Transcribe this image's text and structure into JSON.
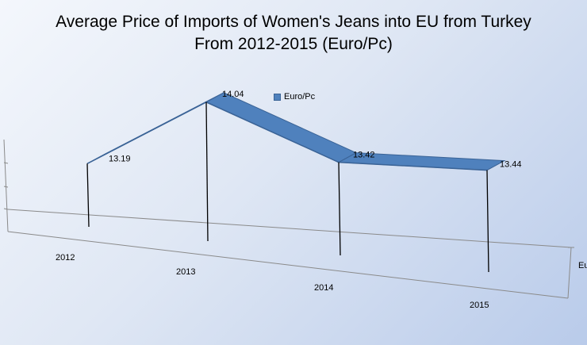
{
  "chart_data": {
    "type": "area",
    "title_lines": [
      "Average Price of Imports of Women's Jeans into EU from Turkey",
      "From 2012-2015  (Euro/Pc)"
    ],
    "categories": [
      "2012",
      "2013",
      "2014",
      "2015"
    ],
    "series": [
      {
        "name": "Euro/Pc",
        "values": [
          13.19,
          14.04,
          13.42,
          13.44
        ]
      }
    ],
    "data_labels": [
      "13.19",
      "14.04",
      "13.42",
      "13.44"
    ],
    "series_axis_label": "Eu",
    "legend_position": "top",
    "three_d": true,
    "colors": {
      "series": "#4f81bd",
      "series_dark": "#3a6396"
    }
  }
}
